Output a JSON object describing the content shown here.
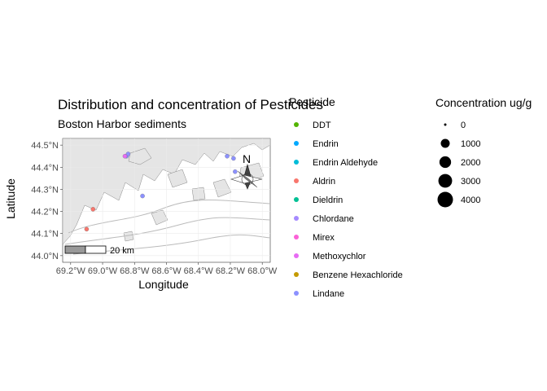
{
  "chart_data": {
    "type": "scatter",
    "title": "Distribution and concentration of Pesticides",
    "subtitle": "Boston Harbor sediments",
    "xlabel": "Longitude",
    "ylabel": "Latitude",
    "xlim": [
      -69.25,
      -67.95
    ],
    "ylim": [
      43.97,
      44.53
    ],
    "x_ticks": [
      -69.2,
      -69.0,
      -68.8,
      -68.6,
      -68.4,
      -68.2,
      -68.0
    ],
    "x_tick_labels": [
      "69.2°W",
      "69.0°W",
      "68.8°W",
      "68.6°W",
      "68.4°W",
      "68.2°W",
      "68.0°W"
    ],
    "y_ticks": [
      44.0,
      44.1,
      44.2,
      44.3,
      44.4,
      44.5
    ],
    "y_tick_labels": [
      "44.0°N",
      "44.1°N",
      "44.2°N",
      "44.3°N",
      "44.4°N",
      "44.5°N"
    ],
    "north_arrow_label": "N",
    "scale_bar_label": "20 km",
    "color_legend": {
      "title": "Pesticide",
      "entries": [
        {
          "label": "DDT",
          "color": "#53b400"
        },
        {
          "label": "Endrin",
          "color": "#00a9ff"
        },
        {
          "label": "Endrin Aldehyde",
          "color": "#00bcd8"
        },
        {
          "label": "Aldrin",
          "color": "#f8766d"
        },
        {
          "label": "Dieldrin",
          "color": "#00c094"
        },
        {
          "label": "Chlordane",
          "color": "#a58aff"
        },
        {
          "label": "Mirex",
          "color": "#fb61d7"
        },
        {
          "label": "Methoxychlor",
          "color": "#e76bf3"
        },
        {
          "label": "Benzene Hexachloride",
          "color": "#c49a00"
        },
        {
          "label": "Lindane",
          "color": "#8c91ff"
        }
      ]
    },
    "size_legend": {
      "title": "Concentration ug/g",
      "entries": [
        {
          "label": "0",
          "value": 0
        },
        {
          "label": "1000",
          "value": 1000
        },
        {
          "label": "2000",
          "value": 2000
        },
        {
          "label": "3000",
          "value": 3000
        },
        {
          "label": "4000",
          "value": 4000
        }
      ]
    },
    "series": [
      {
        "color": "#8c91ff",
        "points": [
          {
            "x": -68.85,
            "y": 44.45
          },
          {
            "x": -68.84,
            "y": 44.46
          },
          {
            "x": -68.75,
            "y": 44.27
          },
          {
            "x": -68.22,
            "y": 44.45
          },
          {
            "x": -68.18,
            "y": 44.44
          },
          {
            "x": -68.17,
            "y": 44.38
          },
          {
            "x": -68.13,
            "y": 44.34
          }
        ]
      },
      {
        "color": "#f8766d",
        "points": [
          {
            "x": -69.06,
            "y": 44.21
          },
          {
            "x": -69.1,
            "y": 44.12
          }
        ]
      },
      {
        "color": "#e76bf3",
        "points": [
          {
            "x": -68.86,
            "y": 44.45
          }
        ]
      }
    ],
    "grid": true
  }
}
